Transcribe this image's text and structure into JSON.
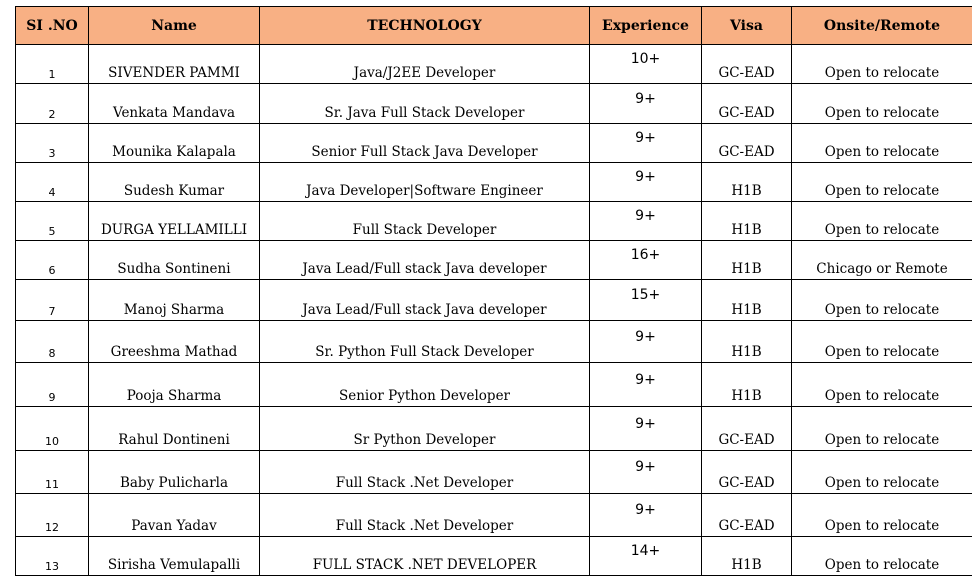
{
  "headers": [
    "SI .NO",
    "Name",
    "TECHNOLOGY",
    "Experience",
    "Visa",
    "Onsite/Remote"
  ],
  "rows": [
    {
      "sno": "1",
      "name": "SIVENDER PAMMI",
      "tech": "Java/J2EE Developer",
      "exp": "10+",
      "visa": "GC-EAD",
      "loc": "Open to relocate"
    },
    {
      "sno": "2",
      "name": "Venkata Mandava",
      "tech": "Sr. Java Full Stack Developer",
      "exp": "9+",
      "visa": "GC-EAD",
      "loc": "Open to relocate"
    },
    {
      "sno": "3",
      "name": "Mounika Kalapala",
      "tech": "Senior Full Stack Java Developer",
      "exp": "9+",
      "visa": "GC-EAD",
      "loc": "Open to relocate"
    },
    {
      "sno": "4",
      "name": "Sudesh Kumar",
      "tech": "Java Developer|Software Engineer",
      "exp": "9+",
      "visa": "H1B",
      "loc": "Open to relocate"
    },
    {
      "sno": "5",
      "name": "DURGA YELLAMILLI",
      "tech": "Full Stack Developer",
      "exp": "9+",
      "visa": "H1B",
      "loc": "Open to relocate"
    },
    {
      "sno": "6",
      "name": "Sudha Sontineni",
      "tech": "Java Lead/Full stack Java developer",
      "exp": "16+",
      "visa": "H1B",
      "loc": "Chicago or Remote"
    },
    {
      "sno": "7",
      "name": "Manoj Sharma",
      "tech": "Java Lead/Full stack Java developer",
      "exp": "15+",
      "visa": "H1B",
      "loc": "Open to relocate"
    },
    {
      "sno": "8",
      "name": "Greeshma Mathad",
      "tech": "Sr. Python Full Stack Developer",
      "exp": "9+",
      "visa": "H1B",
      "loc": "Open to relocate"
    },
    {
      "sno": "9",
      "name": "Pooja Sharma",
      "tech": "Senior Python Developer",
      "exp": "9+",
      "visa": "H1B",
      "loc": "Open to relocate"
    },
    {
      "sno": "10",
      "name": "Rahul Dontineni",
      "tech": "Sr Python Developer",
      "exp": "9+",
      "visa": "GC-EAD",
      "loc": "Open to relocate"
    },
    {
      "sno": "11",
      "name": "Baby Pulicharla",
      "tech": "Full Stack .Net Developer",
      "exp": "9+",
      "visa": "GC-EAD",
      "loc": "Open to relocate"
    },
    {
      "sno": "12",
      "name": "Pavan Yadav",
      "tech": "Full Stack .Net Developer",
      "exp": "9+",
      "visa": "GC-EAD",
      "loc": "Open to relocate"
    },
    {
      "sno": "13",
      "name": "Sirisha Vemulapalli",
      "tech": "FULL STACK .NET DEVELOPER",
      "exp": "14+",
      "visa": "H1B",
      "loc": "Open to relocate"
    }
  ]
}
